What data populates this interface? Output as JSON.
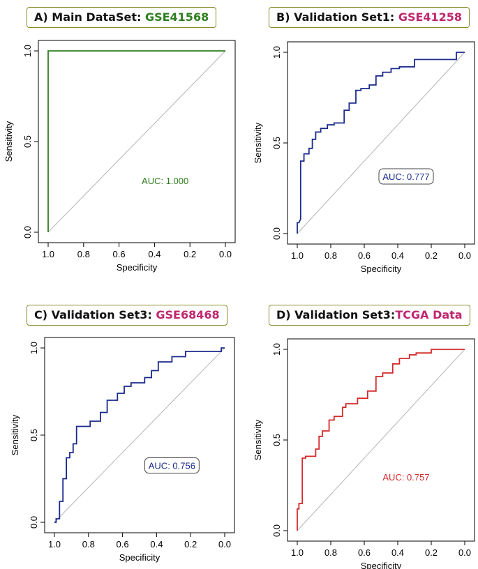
{
  "chart_data": [
    {
      "type": "line",
      "panel": "A",
      "title_prefix": "A) Main DataSet: ",
      "title_dataset": "GSE41568",
      "title_dataset_color": "#2e7d1e",
      "xlabel": "Specificity",
      "ylabel": "Sensitivity",
      "xlim": [
        1.0,
        0.0
      ],
      "ylim": [
        0.0,
        1.0
      ],
      "x_ticks": [
        "1.0",
        "0.8",
        "0.6",
        "0.4",
        "0.2",
        "0.0"
      ],
      "y_ticks": [
        "0.0",
        "0.5",
        "1.0"
      ],
      "auc_label": "AUC: 1.000",
      "auc_boxed": false,
      "line_color": "#2e7d1e",
      "text_color": "#2e7d1e",
      "diagonal": true,
      "series": [
        {
          "name": "ROC",
          "specificity": [
            1.0,
            1.0,
            0.0
          ],
          "sensitivity": [
            0.0,
            1.0,
            1.0
          ]
        }
      ]
    },
    {
      "type": "line",
      "panel": "B",
      "title_prefix": "B) Validation Set1: ",
      "title_dataset": "GSE41258",
      "title_dataset_color": "#c0266e",
      "xlabel": "Specificity",
      "ylabel": "Sensitivity",
      "xlim": [
        1.0,
        0.0
      ],
      "ylim": [
        0.0,
        1.0
      ],
      "x_ticks": [
        "1.0",
        "0.8",
        "0.6",
        "0.4",
        "0.2",
        "0.0"
      ],
      "y_ticks": [
        "0.0",
        "0.5",
        "1.0"
      ],
      "auc_label": "AUC: 0.777",
      "auc_boxed": true,
      "line_color": "#1a2a8c",
      "text_color": "#1a2a8c",
      "diagonal": true,
      "series": [
        {
          "name": "ROC",
          "specificity": [
            1.0,
            1.0,
            0.99,
            0.98,
            0.98,
            0.96,
            0.96,
            0.93,
            0.93,
            0.91,
            0.91,
            0.89,
            0.89,
            0.86,
            0.86,
            0.82,
            0.82,
            0.78,
            0.78,
            0.72,
            0.72,
            0.69,
            0.69,
            0.65,
            0.65,
            0.62,
            0.62,
            0.57,
            0.57,
            0.53,
            0.53,
            0.49,
            0.49,
            0.44,
            0.44,
            0.39,
            0.39,
            0.3,
            0.3,
            0.05,
            0.05,
            0.0
          ],
          "sensitivity": [
            0.0,
            0.06,
            0.06,
            0.08,
            0.4,
            0.4,
            0.44,
            0.44,
            0.47,
            0.47,
            0.52,
            0.52,
            0.56,
            0.56,
            0.58,
            0.58,
            0.6,
            0.6,
            0.61,
            0.61,
            0.68,
            0.68,
            0.72,
            0.72,
            0.79,
            0.79,
            0.8,
            0.8,
            0.82,
            0.82,
            0.87,
            0.87,
            0.89,
            0.89,
            0.91,
            0.91,
            0.92,
            0.92,
            0.96,
            0.96,
            1.0,
            1.0
          ]
        }
      ]
    },
    {
      "type": "line",
      "panel": "C",
      "title_prefix": "C) Validation Set3: ",
      "title_dataset": "GSE68468",
      "title_dataset_color": "#c0266e",
      "xlabel": "Specificity",
      "ylabel": "Sensitivity",
      "xlim": [
        1.0,
        0.0
      ],
      "ylim": [
        0.0,
        1.0
      ],
      "x_ticks": [
        "1.0",
        "0.8",
        "0.6",
        "0.4",
        "0.2",
        "0.0"
      ],
      "y_ticks": [
        "0.0",
        "0.5",
        "1.0"
      ],
      "auc_label": "AUC: 0.756",
      "auc_boxed": true,
      "line_color": "#1a2a8c",
      "text_color": "#1a2a8c",
      "diagonal": true,
      "series": [
        {
          "name": "ROC",
          "specificity": [
            1.0,
            0.99,
            0.99,
            0.97,
            0.97,
            0.95,
            0.95,
            0.93,
            0.93,
            0.91,
            0.91,
            0.89,
            0.89,
            0.87,
            0.87,
            0.79,
            0.79,
            0.73,
            0.73,
            0.69,
            0.69,
            0.63,
            0.63,
            0.59,
            0.59,
            0.55,
            0.55,
            0.47,
            0.47,
            0.43,
            0.43,
            0.39,
            0.39,
            0.31,
            0.31,
            0.23,
            0.23,
            0.02,
            0.02,
            0.0
          ],
          "sensitivity": [
            0.0,
            0.0,
            0.02,
            0.02,
            0.12,
            0.12,
            0.25,
            0.25,
            0.37,
            0.37,
            0.4,
            0.4,
            0.45,
            0.45,
            0.55,
            0.55,
            0.58,
            0.58,
            0.63,
            0.63,
            0.7,
            0.7,
            0.74,
            0.74,
            0.78,
            0.78,
            0.8,
            0.8,
            0.83,
            0.83,
            0.87,
            0.87,
            0.92,
            0.92,
            0.95,
            0.95,
            0.98,
            0.98,
            1.0,
            1.0
          ]
        }
      ]
    },
    {
      "type": "line",
      "panel": "D",
      "title_prefix": "D) Validation Set3:",
      "title_dataset": "TCGA Data",
      "title_dataset_color": "#c0266e",
      "xlabel": "Specificity",
      "ylabel": "Sensitivity",
      "xlim": [
        1.0,
        0.0
      ],
      "ylim": [
        0.0,
        1.0
      ],
      "x_ticks": [
        "1.0",
        "0.8",
        "0.6",
        "0.4",
        "0.2",
        "0.0"
      ],
      "y_ticks": [
        "0.0",
        "0.5",
        "1.0"
      ],
      "auc_label": "AUC: 0.757",
      "auc_boxed": false,
      "line_color": "#d42a2a",
      "text_color": "#d42a2a",
      "diagonal": true,
      "series": [
        {
          "name": "ROC",
          "specificity": [
            1.0,
            1.0,
            0.99,
            0.99,
            0.97,
            0.97,
            0.95,
            0.95,
            0.89,
            0.89,
            0.87,
            0.87,
            0.85,
            0.85,
            0.81,
            0.81,
            0.78,
            0.78,
            0.73,
            0.73,
            0.71,
            0.71,
            0.64,
            0.64,
            0.58,
            0.58,
            0.53,
            0.53,
            0.49,
            0.49,
            0.43,
            0.43,
            0.39,
            0.39,
            0.33,
            0.33,
            0.29,
            0.29,
            0.2,
            0.2,
            0.03,
            0.03,
            0.0
          ],
          "sensitivity": [
            0.0,
            0.12,
            0.12,
            0.15,
            0.15,
            0.4,
            0.4,
            0.41,
            0.41,
            0.45,
            0.45,
            0.52,
            0.52,
            0.55,
            0.55,
            0.61,
            0.61,
            0.63,
            0.63,
            0.68,
            0.68,
            0.7,
            0.7,
            0.73,
            0.73,
            0.77,
            0.77,
            0.85,
            0.85,
            0.87,
            0.87,
            0.92,
            0.92,
            0.95,
            0.95,
            0.97,
            0.97,
            0.98,
            0.98,
            1.0,
            1.0,
            1.0,
            1.0
          ]
        }
      ]
    }
  ]
}
